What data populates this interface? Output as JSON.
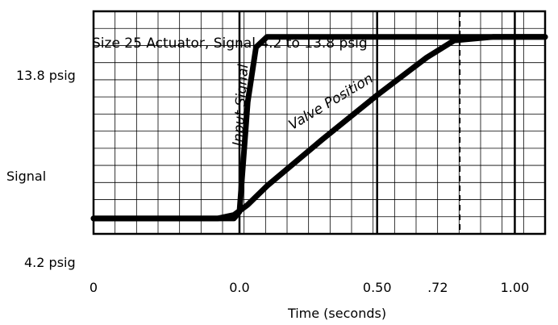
{
  "chart_data": {
    "type": "line",
    "title": "Size 25 Actuator, Signal 4.2 to 13.8 psig",
    "xlabel": "Time (seconds)",
    "ylabel": "Signal",
    "y_tick_top": "13.8 psig",
    "y_tick_bottom": "4.2 psig",
    "x_ticks": [
      {
        "label": "0",
        "value": -0.53
      },
      {
        "label": "0.0",
        "value": 0.0
      },
      {
        "label": "0.50",
        "value": 0.5
      },
      {
        "label": ".72",
        "value": 0.72
      },
      {
        "label": "1.00",
        "value": 1.0
      }
    ],
    "xlim": [
      -0.53,
      1.11
    ],
    "ylim": [
      3.3,
      16.3
    ],
    "grid": true,
    "major_gridlines_x": [
      0.0,
      0.5,
      1.0
    ],
    "dashed_marker_x": 0.8,
    "series": [
      {
        "name": "Input Signal",
        "points": [
          [
            -0.53,
            4.2
          ],
          [
            -0.02,
            4.2
          ],
          [
            0.0,
            4.6
          ],
          [
            0.03,
            11.0
          ],
          [
            0.06,
            14.2
          ],
          [
            0.1,
            14.8
          ],
          [
            1.11,
            14.8
          ]
        ]
      },
      {
        "name": "Valve Position",
        "points": [
          [
            -0.53,
            4.2
          ],
          [
            -0.08,
            4.2
          ],
          [
            -0.02,
            4.4
          ],
          [
            0.03,
            5.0
          ],
          [
            0.1,
            6.1
          ],
          [
            0.3,
            8.8
          ],
          [
            0.5,
            11.4
          ],
          [
            0.68,
            13.6
          ],
          [
            0.78,
            14.6
          ],
          [
            0.92,
            14.8
          ],
          [
            1.11,
            14.8
          ]
        ]
      }
    ],
    "annotations": [
      {
        "text": "Input Signal",
        "x": 0.02,
        "y": 10.8,
        "angle": -86
      },
      {
        "text": "Valve Position",
        "x": 0.34,
        "y": 10.8,
        "angle": -31
      }
    ]
  },
  "colors": {
    "ink": "#000000",
    "background": "#ffffff"
  }
}
